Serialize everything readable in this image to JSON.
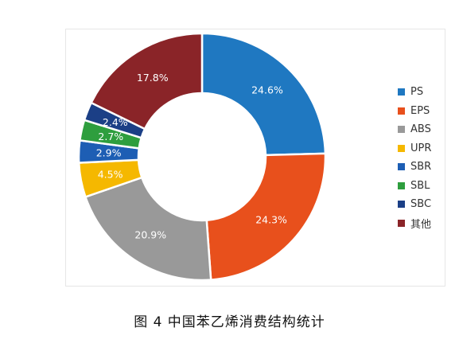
{
  "caption": "图 4  中国苯乙烯消费结构统计",
  "chart_data": {
    "type": "pie",
    "variant": "donut",
    "title": "",
    "legend_position": "right",
    "slices": [
      {
        "name": "PS",
        "value": 24.6,
        "label": "24.6%",
        "color": "#1f78c1"
      },
      {
        "name": "EPS",
        "value": 24.3,
        "label": "24.3%",
        "color": "#e8501c"
      },
      {
        "name": "ABS",
        "value": 20.9,
        "label": "20.9%",
        "color": "#999999"
      },
      {
        "name": "UPR",
        "value": 4.5,
        "label": "4.5%",
        "color": "#f5b800"
      },
      {
        "name": "SBR",
        "value": 2.9,
        "label": "2.9%",
        "color": "#1d5eb4"
      },
      {
        "name": "SBL",
        "value": 2.7,
        "label": "2.7%",
        "color": "#2e9e3e"
      },
      {
        "name": "SBC",
        "value": 2.4,
        "label": "2.4%",
        "color": "#1b3f86"
      },
      {
        "name": "其他",
        "value": 17.8,
        "label": "17.8%",
        "color": "#8a2428"
      }
    ]
  }
}
